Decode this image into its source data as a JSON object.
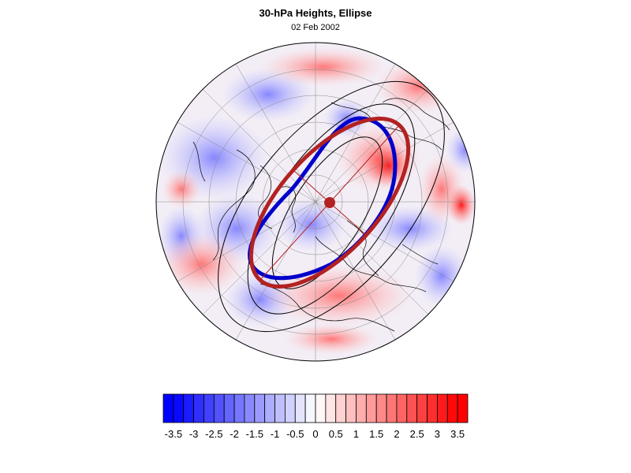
{
  "figure": {
    "title": "30-hPa Heights, Ellipse",
    "subtitle": "02 Feb 2002"
  },
  "colorbar": {
    "tick_labels": [
      "-3.5",
      "-3",
      "-2.5",
      "-2",
      "-1.5",
      "-1",
      "-0.5",
      "0",
      "0.5",
      "1",
      "1.5",
      "2",
      "2.5",
      "3",
      "3.5"
    ],
    "bin_edges": [
      -4.0,
      -3.5,
      -3.25,
      -3.0,
      -2.75,
      -2.5,
      -2.25,
      -2.0,
      -1.75,
      -1.5,
      -1.25,
      -1.0,
      -0.75,
      -0.5,
      -0.25,
      0,
      0.25,
      0.5,
      0.75,
      1.0,
      1.25,
      1.5,
      1.75,
      2.0,
      2.25,
      2.5,
      2.75,
      3.0,
      3.25,
      3.5,
      4.0
    ],
    "negative_color": "#0000ff",
    "positive_color": "#ff0000",
    "neutral_color": "#ffffff"
  },
  "map": {
    "projection": "north-polar-stereographic",
    "field": "30-hPa height anomaly (shaded)",
    "contour_color": "#000000",
    "observed_vortex_color": "#0000cc",
    "fitted_ellipse_color": "#b22222",
    "ellipse_center_marker_color": "#b22222"
  }
}
